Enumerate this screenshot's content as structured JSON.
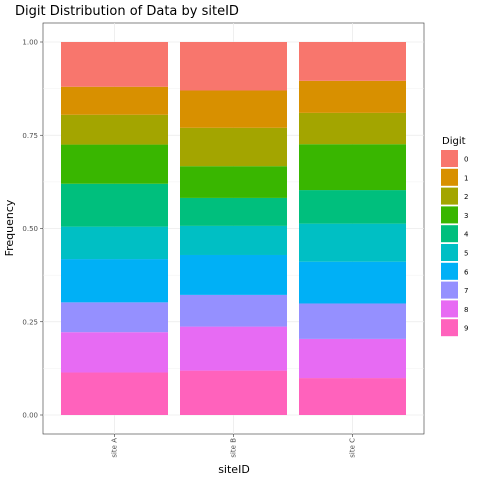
{
  "chart_data": {
    "type": "bar",
    "stacked": true,
    "title": "Digit Distribution of Data by siteID",
    "xlabel": "siteID",
    "ylabel": "Frequency",
    "ylim": [
      0,
      1
    ],
    "y_ticks": [
      "0.00",
      "0.25",
      "0.50",
      "0.75",
      "1.00"
    ],
    "categories": [
      "site A",
      "site B",
      "site C"
    ],
    "legend": {
      "title": "Digit",
      "placement": "right"
    },
    "grid": true,
    "series": [
      {
        "name": "0",
        "color": "#F8766D",
        "values": [
          0.12,
          0.13,
          0.104
        ]
      },
      {
        "name": "1",
        "color": "#D89000",
        "values": [
          0.075,
          0.1,
          0.086
        ]
      },
      {
        "name": "2",
        "color": "#A3A500",
        "values": [
          0.08,
          0.103,
          0.084
        ]
      },
      {
        "name": "3",
        "color": "#39B600",
        "values": [
          0.105,
          0.085,
          0.123
        ]
      },
      {
        "name": "4",
        "color": "#00BF7D",
        "values": [
          0.115,
          0.075,
          0.09
        ]
      },
      {
        "name": "5",
        "color": "#00BFC4",
        "values": [
          0.087,
          0.078,
          0.102
        ]
      },
      {
        "name": "6",
        "color": "#00B0F6",
        "values": [
          0.116,
          0.107,
          0.112
        ]
      },
      {
        "name": "7",
        "color": "#9590FF",
        "values": [
          0.08,
          0.085,
          0.095
        ]
      },
      {
        "name": "8",
        "color": "#E76BF3",
        "values": [
          0.108,
          0.118,
          0.105
        ]
      },
      {
        "name": "9",
        "color": "#FF62BC",
        "values": [
          0.114,
          0.119,
          0.099
        ]
      }
    ]
  }
}
